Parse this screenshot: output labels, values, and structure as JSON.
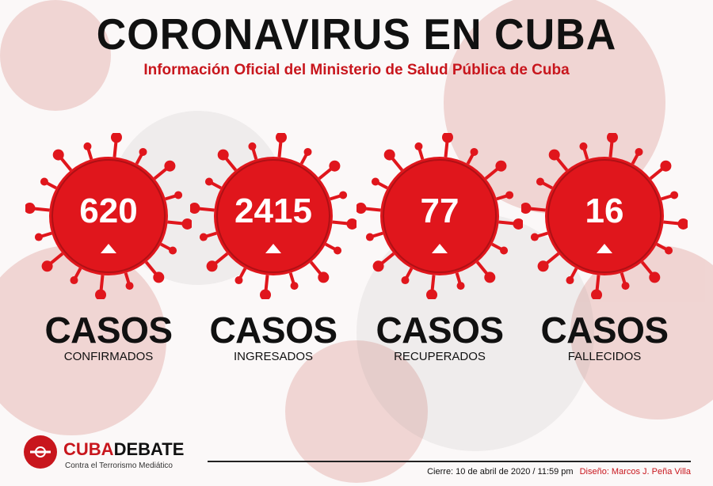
{
  "header": {
    "title": "CORONAVIRUS EN CUBA",
    "subtitle": "Información Oficial del Ministerio de Salud Pública de Cuba"
  },
  "stats": [
    {
      "value": "620",
      "label": "CASOS",
      "sublabel": "CONFIRMADOS",
      "trend": "up"
    },
    {
      "value": "2415",
      "label": "CASOS",
      "sublabel": "INGRESADOS",
      "trend": "up"
    },
    {
      "value": "77",
      "label": "CASOS",
      "sublabel": "RECUPERADOS",
      "trend": "up"
    },
    {
      "value": "16",
      "label": "CASOS",
      "sublabel": "FALLECIDOS",
      "trend": "up"
    }
  ],
  "footer": {
    "logo_part1": "CUBA",
    "logo_part2": "DEBATE",
    "tagline": "Contra el Terrorismo Mediático",
    "cierre": "Cierre: 10 de abril de 2020 / 11:59 pm",
    "credit": "Diseño: Marcos J. Peña Villa"
  },
  "colors": {
    "accent": "#c8161d",
    "virus_red": "#e0161c",
    "text": "#111111"
  }
}
